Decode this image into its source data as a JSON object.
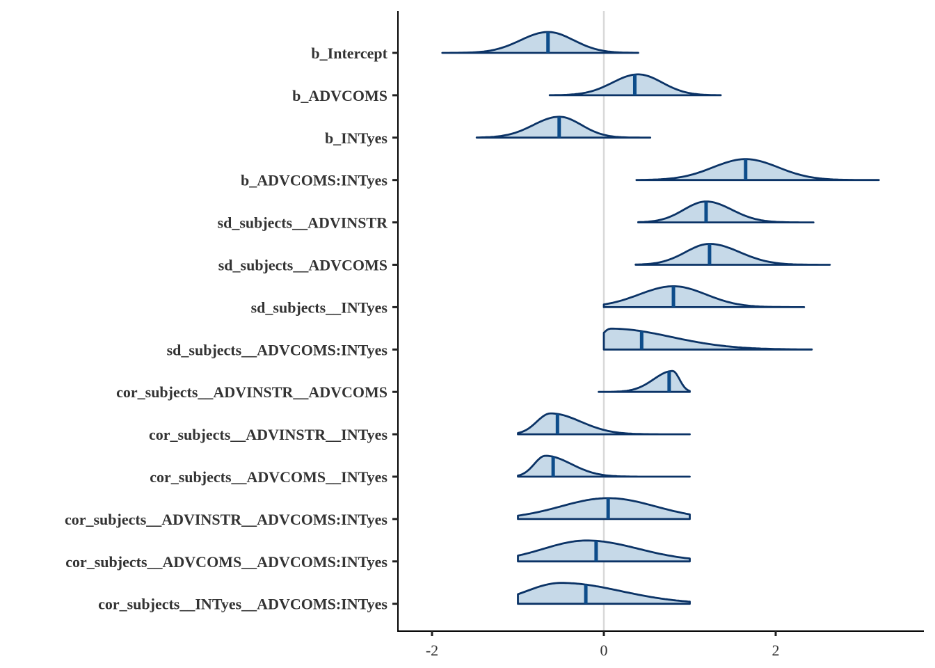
{
  "chart_data": {
    "type": "area",
    "subtype": "posterior-density-ridges",
    "title": "",
    "xlabel": "",
    "ylabel": "",
    "xlim": [
      -2.4,
      3.7
    ],
    "x_ticks": [
      -2,
      0,
      2
    ],
    "x_tick_labels": [
      "-2",
      "0",
      "2"
    ],
    "reference_line_x": 0,
    "grid": false,
    "colors": {
      "fill": "#c6d9e8",
      "outline": "#0b3366",
      "median": "#0d4c8a",
      "reference": "#d9d9d9"
    },
    "parameters": [
      {
        "label": "b_Intercept",
        "median": -0.65,
        "min": -1.88,
        "max": 0.4,
        "peak": -0.65,
        "left_sd": 0.32,
        "right_sd": 0.3
      },
      {
        "label": "b_ADVCOMS",
        "median": 0.36,
        "min": -0.63,
        "max": 1.36,
        "peak": 0.4,
        "left_sd": 0.3,
        "right_sd": 0.28
      },
      {
        "label": "b_INTyes",
        "median": -0.52,
        "min": -1.48,
        "max": 0.54,
        "peak": -0.52,
        "left_sd": 0.3,
        "right_sd": 0.26
      },
      {
        "label": "b_ADVCOMS:INTyes",
        "median": 1.65,
        "min": 0.38,
        "max": 3.2,
        "peak": 1.65,
        "left_sd": 0.38,
        "right_sd": 0.38
      },
      {
        "label": "sd_subjects__ADVINSTR",
        "median": 1.19,
        "min": 0.4,
        "max": 2.44,
        "peak": 1.19,
        "left_sd": 0.26,
        "right_sd": 0.3
      },
      {
        "label": "sd_subjects__ADVCOMS",
        "median": 1.23,
        "min": 0.37,
        "max": 2.63,
        "peak": 1.23,
        "left_sd": 0.28,
        "right_sd": 0.35
      },
      {
        "label": "sd_subjects__INTyes",
        "median": 0.81,
        "min": 0.0,
        "max": 2.33,
        "peak": 0.81,
        "left_sd": 0.4,
        "right_sd": 0.38
      },
      {
        "label": "sd_subjects__ADVCOMS:INTyes",
        "median": 0.44,
        "min": 0.0,
        "max": 2.42,
        "peak": 0.08,
        "left_sd": 0.12,
        "right_sd": 0.7
      },
      {
        "label": "cor_subjects__ADVINSTR__ADVCOMS",
        "median": 0.76,
        "min": -0.06,
        "max": 1.0,
        "peak": 0.8,
        "left_sd": 0.22,
        "right_sd": 0.08
      },
      {
        "label": "cor_subjects__ADVINSTR__INTyes",
        "median": -0.54,
        "min": -1.0,
        "max": 1.0,
        "peak": -0.62,
        "left_sd": 0.16,
        "right_sd": 0.35
      },
      {
        "label": "cor_subjects__ADVCOMS__INTyes",
        "median": -0.59,
        "min": -1.0,
        "max": 1.0,
        "peak": -0.68,
        "left_sd": 0.13,
        "right_sd": 0.3
      },
      {
        "label": "cor_subjects__ADVINSTR__ADVCOMS:INTyes",
        "median": 0.05,
        "min": -1.0,
        "max": 1.0,
        "peak": 0.05,
        "left_sd": 0.55,
        "right_sd": 0.55
      },
      {
        "label": "cor_subjects__ADVCOMS__ADVCOMS:INTyes",
        "median": -0.09,
        "min": -1.0,
        "max": 1.0,
        "peak": -0.2,
        "left_sd": 0.5,
        "right_sd": 0.6
      },
      {
        "label": "cor_subjects__INTyes__ADVCOMS:INTyes",
        "median": -0.21,
        "min": -1.0,
        "max": 1.0,
        "peak": -0.5,
        "left_sd": 0.4,
        "right_sd": 0.7
      }
    ]
  }
}
